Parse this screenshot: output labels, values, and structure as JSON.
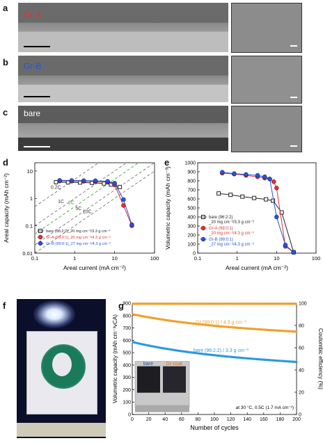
{
  "panels": {
    "a": {
      "label": "a",
      "text": "Gr-A",
      "text_color": "#e03030"
    },
    "b": {
      "label": "b",
      "text": "Gr-B",
      "text_color": "#2255dd"
    },
    "c": {
      "label": "c",
      "text": "bare",
      "text_color": "#ffffff"
    },
    "d": {
      "label": "d"
    },
    "e": {
      "label": "e"
    },
    "f": {
      "label": "f"
    },
    "g": {
      "label": "g"
    }
  },
  "chart_d": {
    "type": "line",
    "xlabel": "Areal current (mA cm⁻²)",
    "ylabel": "Areal capacity (mAh cm⁻²)",
    "xlim": [
      0.1,
      100
    ],
    "ylim": [
      0.01,
      20
    ],
    "xscale": "log",
    "yscale": "log",
    "xticks": [
      "0.1",
      "1",
      "10",
      "100"
    ],
    "yticks": [
      "0.01",
      "0.1",
      "1",
      "10"
    ],
    "crate_lines": [
      {
        "label": "0.2C",
        "rate": 0.2
      },
      {
        "label": "1C",
        "rate": 1
      },
      {
        "label": "2C",
        "rate": 2,
        "color": "#2ca02c"
      },
      {
        "label": "5C",
        "rate": 5
      },
      {
        "label": "10C",
        "rate": 10
      }
    ],
    "series": [
      {
        "name": "bare (96:2:2)_20 mg cm⁻²/3.3 g cm⁻³",
        "color": "#222222",
        "marker": "square-open",
        "x": [
          0.34,
          0.68,
          1.36,
          2.7,
          5.4,
          8.1,
          13.5
        ],
        "y": [
          3.9,
          3.85,
          3.8,
          3.7,
          3.5,
          3.2,
          2.6
        ]
      },
      {
        "name": "Gr-A (99:0:1)_20 mg cm⁻²/4.3 g cm⁻³",
        "color": "#e03030",
        "marker": "circle",
        "x": [
          0.42,
          0.84,
          1.68,
          3.3,
          6.7,
          10,
          16.7,
          27
        ],
        "y": [
          4.3,
          4.25,
          4.2,
          4.1,
          3.9,
          3.1,
          0.55,
          0.1
        ]
      },
      {
        "name": "Gr-B (99:0:1)_27 mg cm⁻²/4.3 g cm⁻³",
        "color": "#2255dd",
        "marker": "circle",
        "x": [
          0.42,
          0.84,
          1.68,
          3.3,
          6.7,
          10,
          16.7,
          27
        ],
        "y": [
          4.55,
          4.5,
          4.45,
          4.4,
          4.2,
          3.6,
          0.9,
          0.11
        ]
      }
    ],
    "legend": "bottom-right"
  },
  "chart_e": {
    "type": "line",
    "xlabel": "Areal current (mA cm⁻²)",
    "ylabel": "Volumetric capacity (mAh cm⁻³)",
    "xlim": [
      0.1,
      100
    ],
    "ylim": [
      0,
      1000
    ],
    "xscale": "log",
    "xticks": [
      "0.1",
      "1",
      "10",
      "100"
    ],
    "yticks": [
      "0",
      "100",
      "200",
      "300",
      "400",
      "500",
      "600",
      "700",
      "800",
      "900",
      "1000"
    ],
    "series": [
      {
        "name": "bare (96:2:2)",
        "sub": "_20 mg cm⁻²/3.3 g cm⁻³",
        "color": "#222222",
        "marker": "square-open",
        "x": [
          0.34,
          0.68,
          1.36,
          2.7,
          5.4,
          8.1,
          13.5,
          27
        ],
        "y": [
          660,
          645,
          625,
          610,
          595,
          580,
          450,
          10
        ]
      },
      {
        "name": "Gr-A (99:0:1)",
        "sub": "_20 mg cm⁻²/4.3 g cm⁻³",
        "color": "#e03030",
        "marker": "circle",
        "x": [
          0.42,
          0.84,
          1.68,
          3.3,
          5.0,
          6.7,
          8.5,
          10,
          16.7,
          27
        ],
        "y": [
          885,
          875,
          860,
          845,
          830,
          820,
          790,
          720,
          75,
          10
        ]
      },
      {
        "name": "Gr-B (99:0:1)",
        "sub": "_27 mg cm⁻²/4.3 g cm⁻³",
        "color": "#2255dd",
        "marker": "circle",
        "x": [
          0.42,
          0.84,
          1.68,
          3.3,
          5.0,
          6.7,
          10,
          16.7,
          27
        ],
        "y": [
          895,
          880,
          870,
          860,
          845,
          820,
          400,
          90,
          10
        ]
      }
    ],
    "legend": "bottom-left"
  },
  "chart_g": {
    "type": "scatter",
    "xlabel": "Number of cycles",
    "ylabel_left": "Volumetric capacity (mAh cm⁻³vCA)",
    "ylabel_right": "Coulombic efficiency (%)",
    "xlim": [
      0,
      200
    ],
    "ylim_left": [
      0,
      900
    ],
    "ylim_right": [
      0,
      100
    ],
    "xticks": [
      "0",
      "20",
      "40",
      "60",
      "80",
      "100",
      "120",
      "140",
      "160",
      "180",
      "200"
    ],
    "yticks_left": [
      "0",
      "100",
      "200",
      "300",
      "400",
      "500",
      "600",
      "700",
      "800",
      "900"
    ],
    "yticks_right": [
      "0",
      "20",
      "40",
      "60",
      "80",
      "100"
    ],
    "series": [
      {
        "name": "Gr (99:0:1) / 4.3 g cm⁻³",
        "color": "#f0a030",
        "start": 810,
        "end": 670
      },
      {
        "name": "bare (96:2:2) / 3.3 g cm⁻³",
        "color": "#2b9be0",
        "start": 585,
        "end": 425
      },
      {
        "name": "CE",
        "color": "#f0a030",
        "value_pct": 99.5
      }
    ],
    "annotation": "at 30 °C, 0.5C (1.7 mA cm⁻²)",
    "inset_labels": [
      "bare",
      "Gr-coat"
    ]
  }
}
